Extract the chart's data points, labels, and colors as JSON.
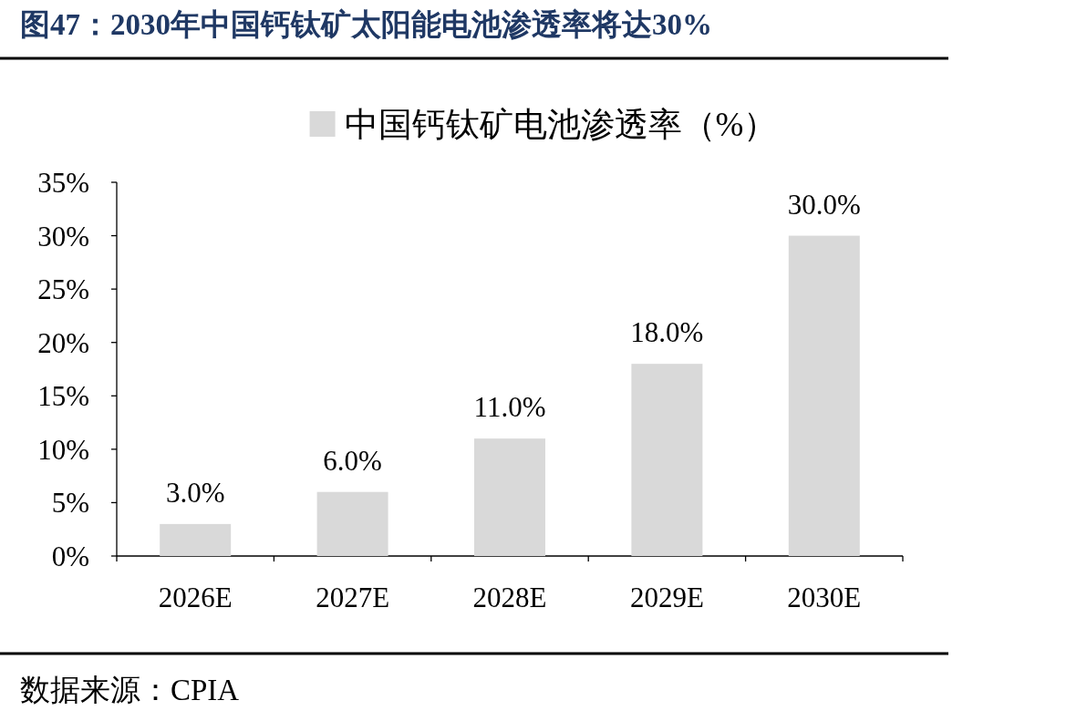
{
  "chart_data": {
    "type": "bar",
    "title": "图47：2030年中国钙钛矿太阳能电池渗透率将达30%",
    "categories": [
      "2026E",
      "2027E",
      "2028E",
      "2029E",
      "2030E"
    ],
    "series": [
      {
        "name": "中国钙钛矿电池渗透率（%）",
        "color": "#d9d9d9",
        "values": [
          3,
          6,
          11,
          18,
          30
        ],
        "value_labels": [
          "3.0%",
          "6.0%",
          "11.0%",
          "18.0%",
          "30.0%"
        ]
      }
    ],
    "ylim": [
      0,
      35
    ],
    "yticks": [
      {
        "value": 0,
        "label": "0%"
      },
      {
        "value": 5,
        "label": "5%"
      },
      {
        "value": 10,
        "label": "10%"
      },
      {
        "value": 15,
        "label": "15%"
      },
      {
        "value": 20,
        "label": "20%"
      },
      {
        "value": 25,
        "label": "25%"
      },
      {
        "value": 30,
        "label": "30%"
      },
      {
        "value": 35,
        "label": "35%"
      }
    ],
    "legend": "top",
    "annotations": [
      "数据来源：CPIA"
    ]
  }
}
